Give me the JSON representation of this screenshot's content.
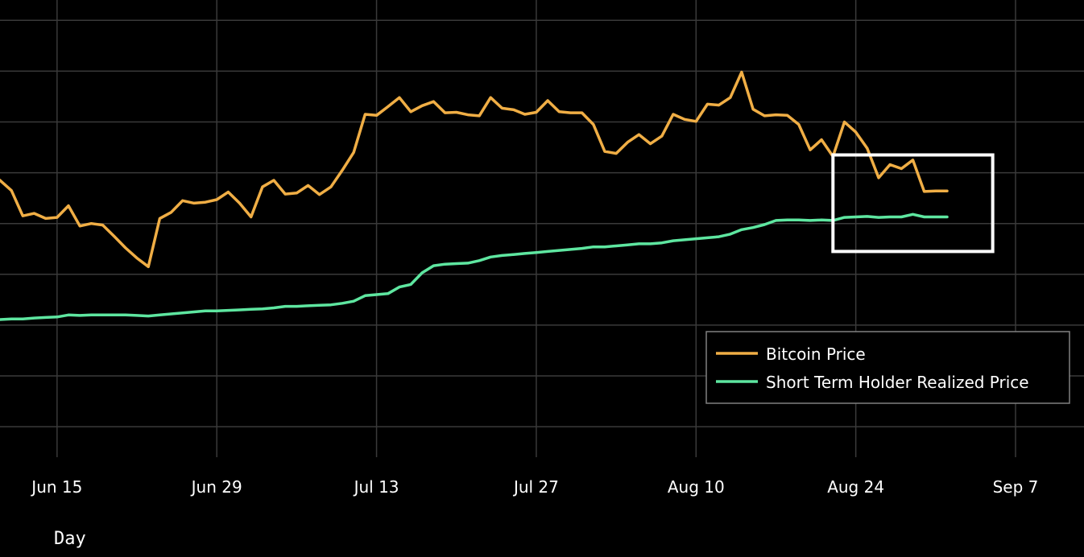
{
  "colors": {
    "background": "#000000",
    "grid": "#3a3a3a",
    "bitcoin": "#F0AE45",
    "sth": "#5EE6A0",
    "highlight": "#ffffff",
    "legend_border": "#808080"
  },
  "chart_data": {
    "type": "line",
    "title": "",
    "xlabel": "Day",
    "ylabel": "",
    "x_ticks": [
      "Jun 15",
      "Jun 29",
      "Jul 13",
      "Jul 27",
      "Aug 10",
      "Aug 24",
      "Sep 7"
    ],
    "x_range": [
      "2024-06-10",
      "2024-09-13"
    ],
    "y_range": [
      -0.6,
      8.4
    ],
    "y_axis_labels_visible": false,
    "legend_position": "bottom-right",
    "grid": true,
    "highlight_box": {
      "x_start": "2024-08-22",
      "x_end": "2024-09-05",
      "y_low": 3.45,
      "y_high": 5.35
    },
    "series": [
      {
        "name": "Bitcoin Price",
        "points": [
          [
            "2024-06-10",
            4.85
          ],
          [
            "2024-06-11",
            4.65
          ],
          [
            "2024-06-12",
            4.15
          ],
          [
            "2024-06-13",
            4.2
          ],
          [
            "2024-06-14",
            4.1
          ],
          [
            "2024-06-15",
            4.12
          ],
          [
            "2024-06-16",
            4.35
          ],
          [
            "2024-06-17",
            3.95
          ],
          [
            "2024-06-18",
            4.0
          ],
          [
            "2024-06-19",
            3.97
          ],
          [
            "2024-06-20",
            3.75
          ],
          [
            "2024-06-21",
            3.52
          ],
          [
            "2024-06-22",
            3.32
          ],
          [
            "2024-06-23",
            3.15
          ],
          [
            "2024-06-24",
            4.1
          ],
          [
            "2024-06-25",
            4.22
          ],
          [
            "2024-06-26",
            4.45
          ],
          [
            "2024-06-27",
            4.4
          ],
          [
            "2024-06-28",
            4.42
          ],
          [
            "2024-06-29",
            4.47
          ],
          [
            "2024-06-30",
            4.62
          ],
          [
            "2024-07-01",
            4.4
          ],
          [
            "2024-07-02",
            4.13
          ],
          [
            "2024-07-03",
            4.72
          ],
          [
            "2024-07-04",
            4.85
          ],
          [
            "2024-07-05",
            4.58
          ],
          [
            "2024-07-06",
            4.6
          ],
          [
            "2024-07-07",
            4.75
          ],
          [
            "2024-07-08",
            4.57
          ],
          [
            "2024-07-09",
            4.72
          ],
          [
            "2024-07-10",
            5.05
          ],
          [
            "2024-07-11",
            5.4
          ],
          [
            "2024-07-12",
            6.15
          ],
          [
            "2024-07-13",
            6.13
          ],
          [
            "2024-07-14",
            6.3
          ],
          [
            "2024-07-15",
            6.48
          ],
          [
            "2024-07-16",
            6.2
          ],
          [
            "2024-07-17",
            6.32
          ],
          [
            "2024-07-18",
            6.4
          ],
          [
            "2024-07-19",
            6.18
          ],
          [
            "2024-07-20",
            6.19
          ],
          [
            "2024-07-21",
            6.14
          ],
          [
            "2024-07-22",
            6.12
          ],
          [
            "2024-07-23",
            6.48
          ],
          [
            "2024-07-24",
            6.27
          ],
          [
            "2024-07-25",
            6.24
          ],
          [
            "2024-07-26",
            6.15
          ],
          [
            "2024-07-27",
            6.19
          ],
          [
            "2024-07-28",
            6.42
          ],
          [
            "2024-07-29",
            6.2
          ],
          [
            "2024-07-30",
            6.18
          ],
          [
            "2024-07-31",
            6.18
          ],
          [
            "2024-08-01",
            5.95
          ],
          [
            "2024-08-02",
            5.42
          ],
          [
            "2024-08-03",
            5.38
          ],
          [
            "2024-08-04",
            5.6
          ],
          [
            "2024-08-05",
            5.75
          ],
          [
            "2024-08-06",
            5.57
          ],
          [
            "2024-08-07",
            5.72
          ],
          [
            "2024-08-08",
            6.15
          ],
          [
            "2024-08-09",
            6.05
          ],
          [
            "2024-08-10",
            6.01
          ],
          [
            "2024-08-11",
            6.35
          ],
          [
            "2024-08-12",
            6.33
          ],
          [
            "2024-08-13",
            6.48
          ],
          [
            "2024-08-14",
            6.98
          ],
          [
            "2024-08-15",
            6.25
          ],
          [
            "2024-08-16",
            6.12
          ],
          [
            "2024-08-17",
            6.14
          ],
          [
            "2024-08-18",
            6.13
          ],
          [
            "2024-08-19",
            5.95
          ],
          [
            "2024-08-20",
            5.45
          ],
          [
            "2024-08-21",
            5.65
          ],
          [
            "2024-08-22",
            5.32
          ],
          [
            "2024-08-23",
            6.0
          ],
          [
            "2024-08-24",
            5.8
          ],
          [
            "2024-08-25",
            5.48
          ],
          [
            "2024-08-26",
            4.9
          ],
          [
            "2024-08-27",
            5.16
          ],
          [
            "2024-08-28",
            5.08
          ],
          [
            "2024-08-29",
            5.25
          ],
          [
            "2024-08-30",
            4.63
          ],
          [
            "2024-08-31",
            4.64
          ],
          [
            "2024-09-01",
            4.64
          ]
        ]
      },
      {
        "name": "Short Term Holder Realized Price",
        "points": [
          [
            "2024-06-10",
            2.11
          ],
          [
            "2024-06-11",
            2.12
          ],
          [
            "2024-06-12",
            2.12
          ],
          [
            "2024-06-13",
            2.14
          ],
          [
            "2024-06-14",
            2.15
          ],
          [
            "2024-06-15",
            2.16
          ],
          [
            "2024-06-16",
            2.2
          ],
          [
            "2024-06-17",
            2.19
          ],
          [
            "2024-06-18",
            2.2
          ],
          [
            "2024-06-19",
            2.2
          ],
          [
            "2024-06-20",
            2.2
          ],
          [
            "2024-06-21",
            2.2
          ],
          [
            "2024-06-22",
            2.19
          ],
          [
            "2024-06-23",
            2.18
          ],
          [
            "2024-06-24",
            2.2
          ],
          [
            "2024-06-25",
            2.22
          ],
          [
            "2024-06-26",
            2.24
          ],
          [
            "2024-06-27",
            2.26
          ],
          [
            "2024-06-28",
            2.28
          ],
          [
            "2024-06-29",
            2.28
          ],
          [
            "2024-06-30",
            2.29
          ],
          [
            "2024-07-01",
            2.3
          ],
          [
            "2024-07-02",
            2.31
          ],
          [
            "2024-07-03",
            2.32
          ],
          [
            "2024-07-04",
            2.34
          ],
          [
            "2024-07-05",
            2.37
          ],
          [
            "2024-07-06",
            2.37
          ],
          [
            "2024-07-07",
            2.38
          ],
          [
            "2024-07-08",
            2.39
          ],
          [
            "2024-07-09",
            2.4
          ],
          [
            "2024-07-10",
            2.43
          ],
          [
            "2024-07-11",
            2.47
          ],
          [
            "2024-07-12",
            2.58
          ],
          [
            "2024-07-13",
            2.6
          ],
          [
            "2024-07-14",
            2.62
          ],
          [
            "2024-07-15",
            2.75
          ],
          [
            "2024-07-16",
            2.8
          ],
          [
            "2024-07-17",
            3.03
          ],
          [
            "2024-07-18",
            3.17
          ],
          [
            "2024-07-19",
            3.2
          ],
          [
            "2024-07-20",
            3.21
          ],
          [
            "2024-07-21",
            3.22
          ],
          [
            "2024-07-22",
            3.27
          ],
          [
            "2024-07-23",
            3.34
          ],
          [
            "2024-07-24",
            3.37
          ],
          [
            "2024-07-25",
            3.39
          ],
          [
            "2024-07-26",
            3.41
          ],
          [
            "2024-07-27",
            3.43
          ],
          [
            "2024-07-28",
            3.45
          ],
          [
            "2024-07-29",
            3.47
          ],
          [
            "2024-07-30",
            3.49
          ],
          [
            "2024-07-31",
            3.51
          ],
          [
            "2024-08-01",
            3.54
          ],
          [
            "2024-08-02",
            3.54
          ],
          [
            "2024-08-03",
            3.56
          ],
          [
            "2024-08-04",
            3.58
          ],
          [
            "2024-08-05",
            3.6
          ],
          [
            "2024-08-06",
            3.6
          ],
          [
            "2024-08-07",
            3.62
          ],
          [
            "2024-08-08",
            3.66
          ],
          [
            "2024-08-09",
            3.68
          ],
          [
            "2024-08-10",
            3.7
          ],
          [
            "2024-08-11",
            3.72
          ],
          [
            "2024-08-12",
            3.74
          ],
          [
            "2024-08-13",
            3.79
          ],
          [
            "2024-08-14",
            3.88
          ],
          [
            "2024-08-15",
            3.92
          ],
          [
            "2024-08-16",
            3.98
          ],
          [
            "2024-08-17",
            4.06
          ],
          [
            "2024-08-18",
            4.07
          ],
          [
            "2024-08-19",
            4.07
          ],
          [
            "2024-08-20",
            4.06
          ],
          [
            "2024-08-21",
            4.07
          ],
          [
            "2024-08-22",
            4.06
          ],
          [
            "2024-08-23",
            4.12
          ],
          [
            "2024-08-24",
            4.13
          ],
          [
            "2024-08-25",
            4.14
          ],
          [
            "2024-08-26",
            4.12
          ],
          [
            "2024-08-27",
            4.13
          ],
          [
            "2024-08-28",
            4.13
          ],
          [
            "2024-08-29",
            4.18
          ],
          [
            "2024-08-30",
            4.13
          ],
          [
            "2024-08-31",
            4.13
          ],
          [
            "2024-09-01",
            4.13
          ]
        ]
      }
    ]
  }
}
